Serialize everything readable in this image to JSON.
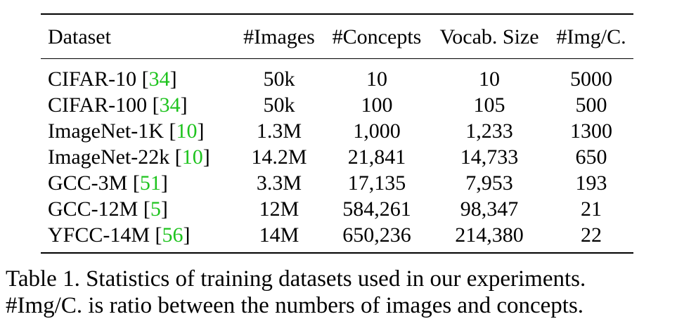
{
  "table": {
    "headers": [
      "Dataset",
      "#Images",
      "#Concepts",
      "Vocab. Size",
      "#Img/C."
    ],
    "rows": [
      {
        "name": "CIFAR-10",
        "cite": "34",
        "images": "50k",
        "concepts": "10",
        "vocab": "10",
        "ratio": "5000"
      },
      {
        "name": "CIFAR-100",
        "cite": "34",
        "images": "50k",
        "concepts": "100",
        "vocab": "105",
        "ratio": "500"
      },
      {
        "name": "ImageNet-1K",
        "cite": "10",
        "images": "1.3M",
        "concepts": "1,000",
        "vocab": "1,233",
        "ratio": "1300"
      },
      {
        "name": "ImageNet-22k",
        "cite": "10",
        "images": "14.2M",
        "concepts": "21,841",
        "vocab": "14,733",
        "ratio": "650"
      },
      {
        "name": "GCC-3M",
        "cite": "51",
        "images": "3.3M",
        "concepts": "17,135",
        "vocab": "7,953",
        "ratio": "193"
      },
      {
        "name": "GCC-12M",
        "cite": "5",
        "images": "12M",
        "concepts": "584,261",
        "vocab": "98,347",
        "ratio": "21"
      },
      {
        "name": "YFCC-14M",
        "cite": "56",
        "images": "14M",
        "concepts": "650,236",
        "vocab": "214,380",
        "ratio": "22"
      }
    ]
  },
  "caption": {
    "line1": "Table 1.  Statistics of training datasets used in our experiments.",
    "line2": "#Img/C. is ratio between the numbers of images and concepts."
  },
  "colors": {
    "citation": "#1ec31e",
    "text": "#000000"
  }
}
